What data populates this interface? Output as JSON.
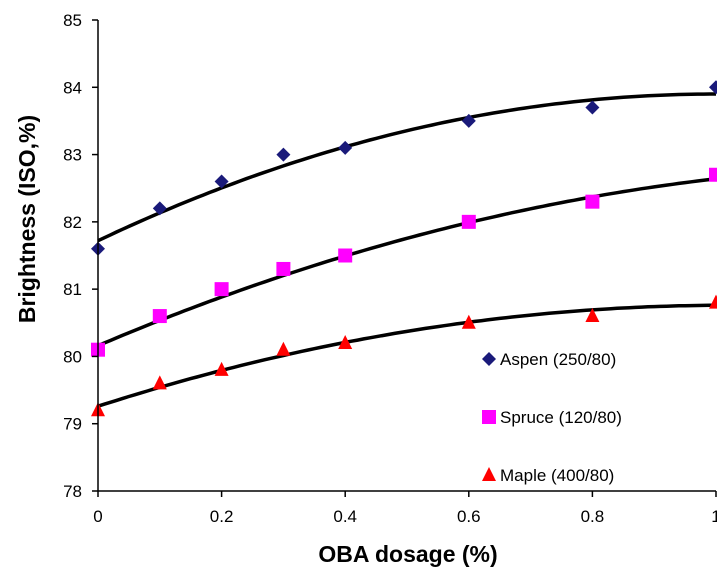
{
  "chart_data": {
    "type": "scatter",
    "title": "",
    "xlabel": "OBA dosage (%)",
    "ylabel": "Brightness (ISO,%)",
    "xlim": [
      0,
      1
    ],
    "ylim": [
      78,
      85
    ],
    "x_ticks": [
      "0",
      "0.2",
      "0.4",
      "0.6",
      "0.8",
      "1"
    ],
    "x_tick_values": [
      0,
      0.2,
      0.4,
      0.6,
      0.8,
      1
    ],
    "y_ticks": [
      "78",
      "79",
      "80",
      "81",
      "82",
      "83",
      "84",
      "85"
    ],
    "y_tick_values": [
      78,
      79,
      80,
      81,
      82,
      83,
      84,
      85
    ],
    "grid": false,
    "legend_position": "bottom-right",
    "series": [
      {
        "name": "Aspen (250/80)",
        "marker": "diamond",
        "color": "#1a1a7a",
        "x": [
          0,
          0.1,
          0.2,
          0.3,
          0.4,
          0.6,
          0.8,
          1.0
        ],
        "y": [
          81.6,
          82.2,
          82.6,
          83.0,
          83.1,
          83.5,
          83.7,
          84.0
        ],
        "fit": [
          81.72,
          4.36,
          -2.18
        ]
      },
      {
        "name": "Spruce (120/80)",
        "marker": "square",
        "color": "#ff00ff",
        "x": [
          0,
          0.1,
          0.2,
          0.3,
          0.4,
          0.6,
          0.8,
          1.0
        ],
        "y": [
          80.1,
          80.6,
          81.0,
          81.3,
          81.5,
          82.0,
          82.3,
          82.7
        ],
        "fit": [
          80.16,
          3.9,
          -1.42
        ]
      },
      {
        "name": "Maple (400/80)",
        "marker": "triangle",
        "color": "#ff0000",
        "x": [
          0,
          0.1,
          0.2,
          0.3,
          0.4,
          0.6,
          0.8,
          1.0
        ],
        "y": [
          79.2,
          79.6,
          79.8,
          80.1,
          80.2,
          80.5,
          80.6,
          80.8
        ],
        "fit": [
          79.26,
          2.95,
          -1.45
        ]
      }
    ],
    "trendline_color": "#000000"
  }
}
